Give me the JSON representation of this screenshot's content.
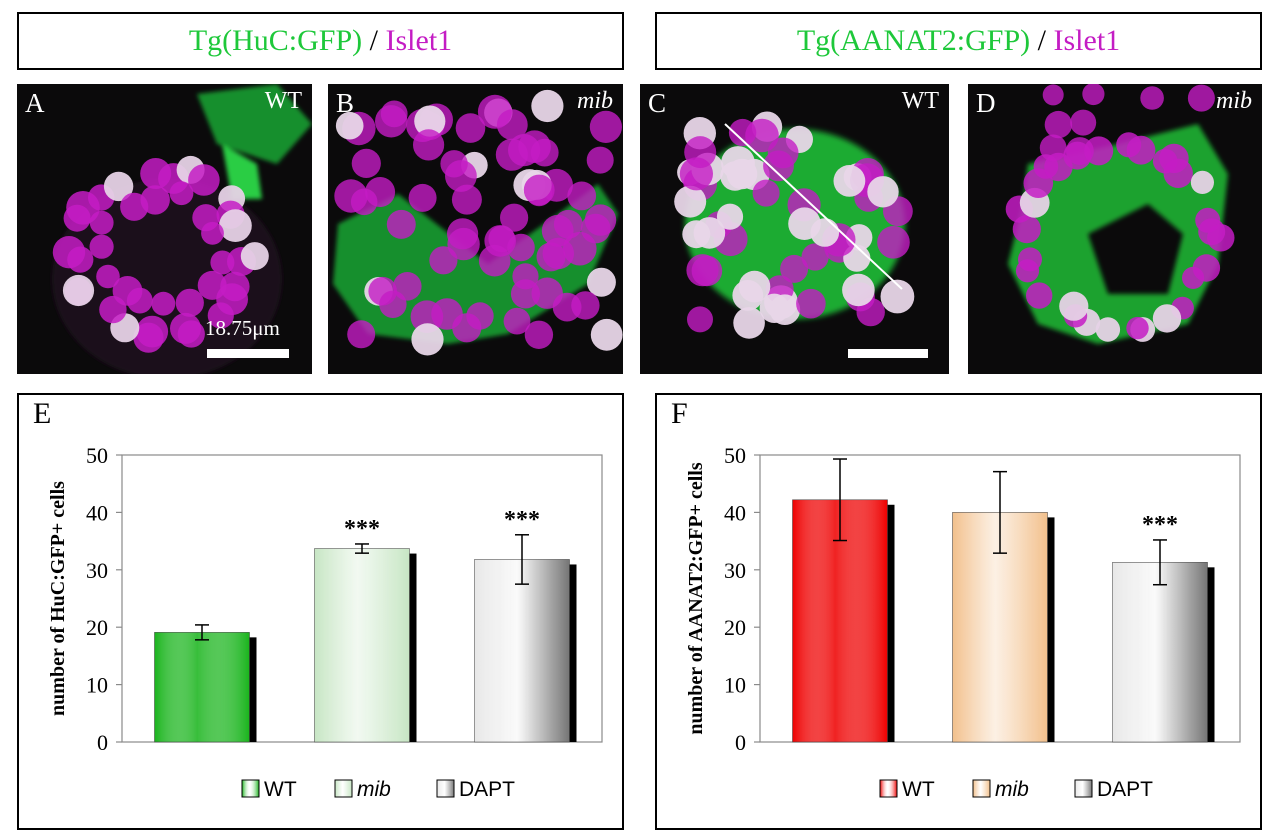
{
  "headers": {
    "left": {
      "reporter": "Tg(HuC:GFP)",
      "sep": " / ",
      "marker": "Islet1"
    },
    "right": {
      "reporter": "Tg(AANAT2:GFP)",
      "sep": " / ",
      "marker": "Islet1"
    }
  },
  "panels": [
    {
      "letter": "A",
      "condition": "WT",
      "scale": "18.75μm"
    },
    {
      "letter": "B",
      "condition": "mib"
    },
    {
      "letter": "C",
      "condition": "WT"
    },
    {
      "letter": "D",
      "condition": "mib"
    }
  ],
  "colors": {
    "gfp": "#1ec83a",
    "islet": "#c41cc4",
    "red": "#ee0000",
    "tan": "#f2c08c"
  },
  "chart_data": [
    {
      "type": "bar",
      "panel_letter": "E",
      "ylabel": "number of HuC:GFP+ cells",
      "ylim": [
        0,
        50
      ],
      "yticks": [
        0,
        10,
        20,
        30,
        40,
        50
      ],
      "categories": [
        "WT",
        "mib",
        "DAPT"
      ],
      "values": [
        19.1,
        33.7,
        31.8
      ],
      "errors": [
        1.3,
        0.8,
        4.3
      ],
      "significance": [
        "",
        "***",
        "***"
      ],
      "legend": [
        "WT",
        "mib",
        "DAPT"
      ],
      "legend_position": "bottom",
      "bar_colors": [
        "#19b41c",
        "#c7e6c4",
        "#e8e8e8"
      ]
    },
    {
      "type": "bar",
      "panel_letter": "F",
      "ylabel": "number of AANAT2:GFP+ cells",
      "ylim": [
        0,
        50
      ],
      "yticks": [
        0,
        10,
        20,
        30,
        40,
        50
      ],
      "categories": [
        "WT",
        "mib",
        "DAPT"
      ],
      "values": [
        42.2,
        40.0,
        31.3
      ],
      "errors": [
        7.1,
        7.1,
        3.9
      ],
      "significance": [
        "",
        "",
        "***"
      ],
      "legend": [
        "WT",
        "mib",
        "DAPT"
      ],
      "legend_position": "bottom",
      "bar_colors": [
        "#ee0000",
        "#f2c08c",
        "#e8e8e8"
      ]
    }
  ]
}
